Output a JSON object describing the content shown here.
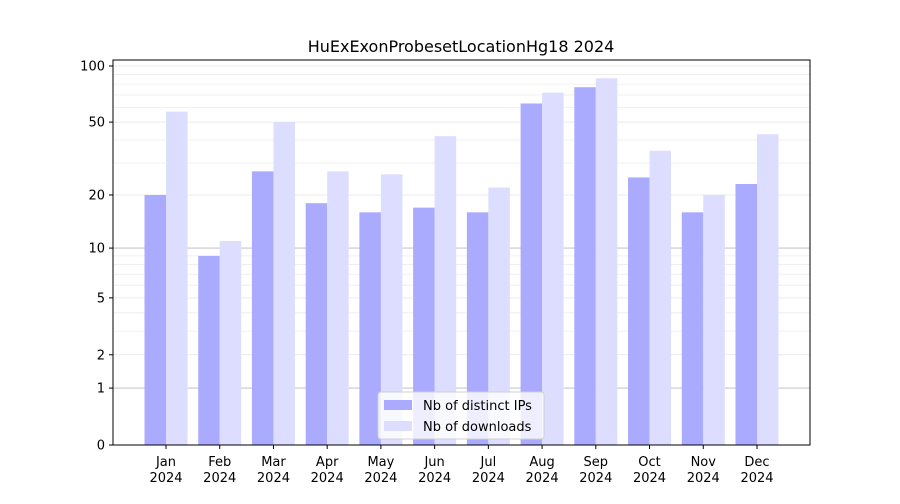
{
  "chart_data": {
    "type": "bar",
    "title": "HuExExonProbesetLocationHg18 2024",
    "xlabel": "",
    "ylabel": "",
    "yscale": "symlog (log10(1+y))",
    "ylim": [
      0,
      100
    ],
    "yticks": [
      0,
      1,
      2,
      5,
      10,
      20,
      50,
      100
    ],
    "grid": true,
    "legend_position": "bottom-center",
    "categories": [
      "Jan\n2024",
      "Feb\n2024",
      "Mar\n2024",
      "Apr\n2024",
      "May\n2024",
      "Jun\n2024",
      "Jul\n2024",
      "Aug\n2024",
      "Sep\n2024",
      "Oct\n2024",
      "Nov\n2024",
      "Dec\n2024"
    ],
    "series": [
      {
        "name": "Nb of distinct IPs",
        "color": "#aaaaff",
        "values": [
          20,
          9,
          27,
          18,
          16,
          17,
          16,
          63,
          77,
          25,
          16,
          23
        ]
      },
      {
        "name": "Nb of downloads",
        "color": "#ddddff",
        "values": [
          57,
          11,
          50,
          27,
          26,
          42,
          22,
          72,
          86,
          35,
          20,
          43
        ]
      }
    ]
  }
}
